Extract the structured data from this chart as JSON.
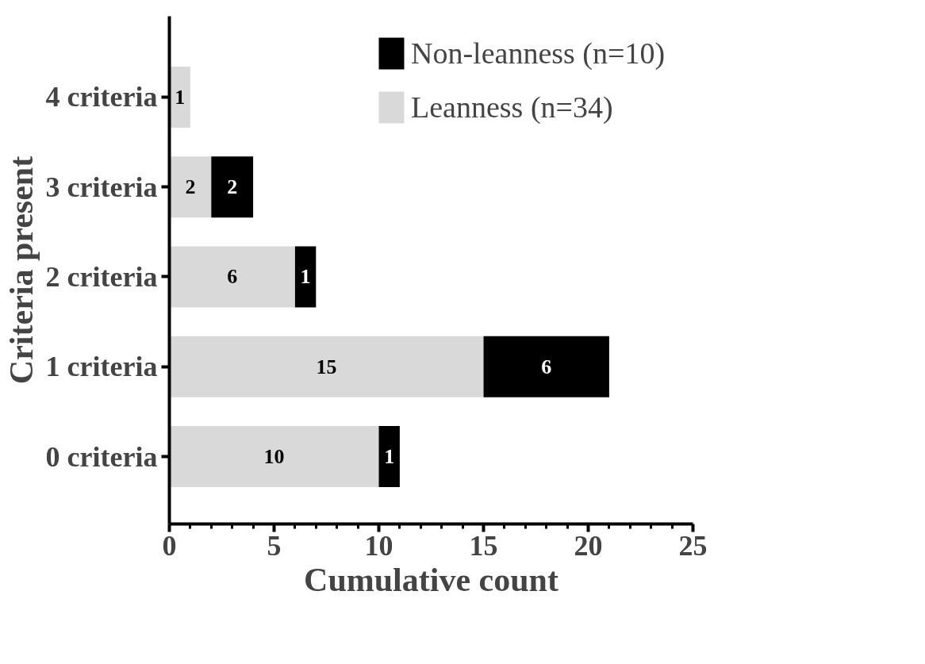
{
  "chart_data": {
    "type": "bar",
    "orientation": "horizontal",
    "stacked": true,
    "xlabel": "Cumulative count",
    "ylabel": "Criteria present",
    "categories": [
      "4 criteria",
      "3 criteria",
      "2 criteria",
      "1 criteria",
      "0 criteria"
    ],
    "series": [
      {
        "name": "Leanness (n=34)",
        "color": "#d9d9d9",
        "values": [
          1,
          2,
          6,
          15,
          10
        ]
      },
      {
        "name": "Non-leanness (n=10)",
        "color": "#000000",
        "values": [
          null,
          2,
          1,
          6,
          1
        ]
      }
    ],
    "xlim": [
      0,
      25
    ],
    "xticks": [
      0,
      5,
      10,
      15,
      20,
      25
    ],
    "data_labels": true,
    "grid": false,
    "legend": "top right"
  }
}
